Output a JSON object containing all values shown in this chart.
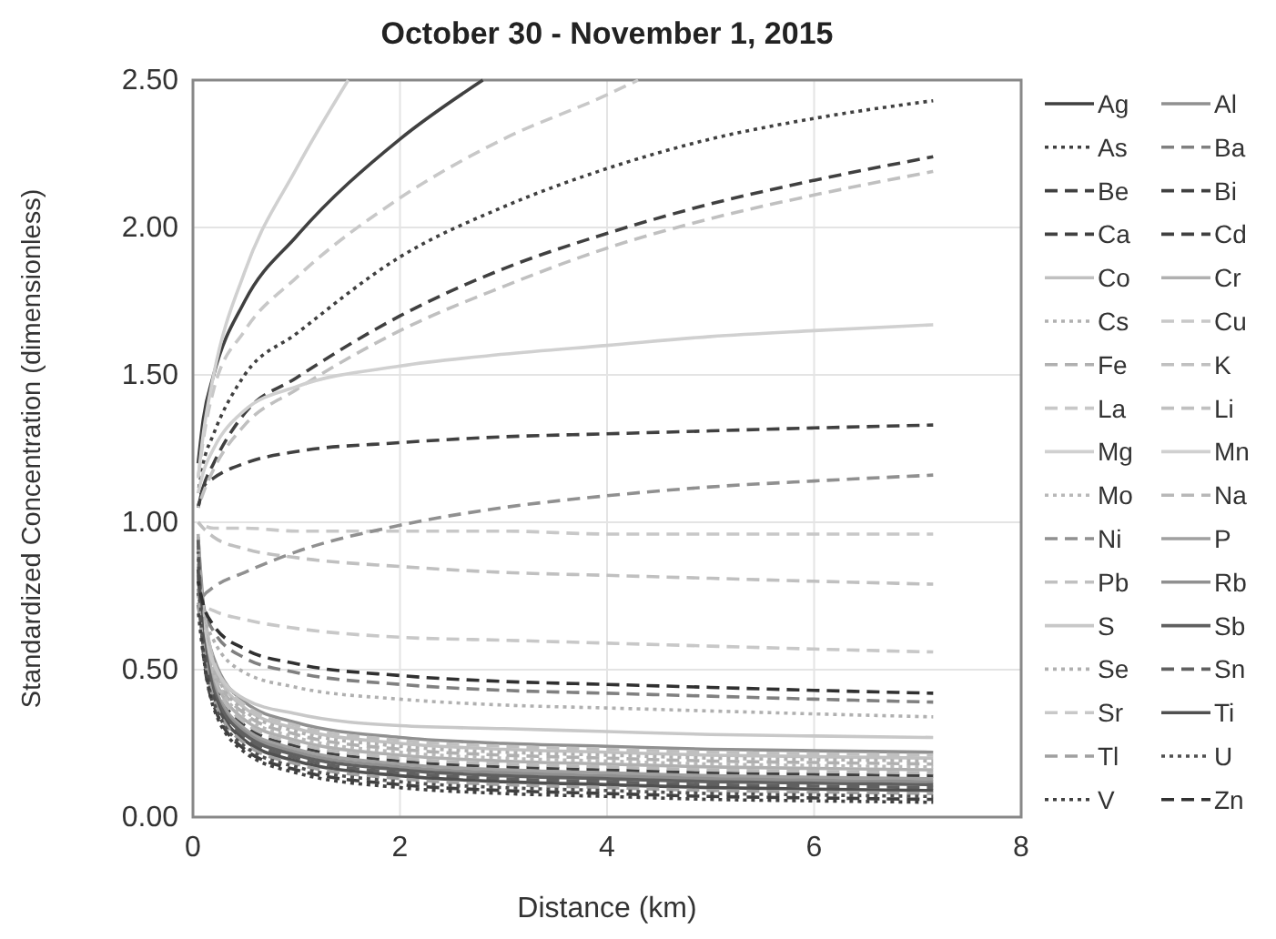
{
  "chart_data": {
    "type": "line",
    "title": "October 30 - November 1, 2015",
    "xlabel": "Distance (km)",
    "ylabel": "Standardized Concentration (dimensionless)",
    "xlim": [
      0,
      8
    ],
    "ylim": [
      0,
      2.5
    ],
    "xticks": [
      0,
      2,
      4,
      6,
      8
    ],
    "yticks": [
      {
        "value": 0,
        "label": "0.00"
      },
      {
        "value": 0.5,
        "label": "0.50"
      },
      {
        "value": 1,
        "label": "1.00"
      },
      {
        "value": 1.5,
        "label": "1.50"
      },
      {
        "value": 2,
        "label": "2.00"
      },
      {
        "value": 2.5,
        "label": "2.50"
      }
    ],
    "grid": true,
    "legend": "right",
    "marker": "none",
    "x": [
      0.05,
      0.1,
      0.2,
      0.5,
      1,
      2,
      3,
      4,
      5,
      6,
      7.15
    ],
    "series": [
      {
        "name": "Ag",
        "color": "#404040",
        "line_style": "solid",
        "x": [
          0.05,
          0.1,
          0.2,
          0.5,
          1,
          2,
          2.8
        ],
        "values": [
          1.2,
          1.35,
          1.5,
          1.75,
          1.97,
          2.3,
          2.5
        ]
      },
      {
        "name": "Al",
        "color": "#909090",
        "line_style": "solid",
        "values": [
          0.95,
          0.72,
          0.54,
          0.39,
          0.32,
          0.27,
          0.25,
          0.24,
          0.23,
          0.225,
          0.22
        ]
      },
      {
        "name": "As",
        "color": "#404040",
        "line_style": "dotted",
        "values": [
          1.1,
          1.2,
          1.3,
          1.5,
          1.64,
          1.9,
          2.07,
          2.2,
          2.3,
          2.37,
          2.43
        ]
      },
      {
        "name": "Ba",
        "color": "#808080",
        "line_style": "dashed",
        "values": [
          0.85,
          0.72,
          0.63,
          0.54,
          0.49,
          0.45,
          0.43,
          0.42,
          0.41,
          0.4,
          0.39
        ]
      },
      {
        "name": "Be",
        "color": "#404040",
        "line_style": "dashed",
        "values": [
          0.8,
          0.56,
          0.38,
          0.23,
          0.16,
          0.11,
          0.09,
          0.08,
          0.07,
          0.065,
          0.06
        ]
      },
      {
        "name": "Bi",
        "color": "#404040",
        "line_style": "dashed",
        "values": [
          1.05,
          1.12,
          1.2,
          1.37,
          1.49,
          1.7,
          1.86,
          1.98,
          2.08,
          2.16,
          2.24
        ]
      },
      {
        "name": "Ca",
        "color": "#404040",
        "line_style": "dashed",
        "values": [
          0.76,
          0.64,
          0.46,
          0.31,
          0.24,
          0.19,
          0.17,
          0.16,
          0.15,
          0.145,
          0.14
        ]
      },
      {
        "name": "Cd",
        "color": "#404040",
        "line_style": "dashed",
        "values": [
          1.05,
          1.12,
          1.15,
          1.2,
          1.24,
          1.27,
          1.29,
          1.3,
          1.31,
          1.32,
          1.33
        ]
      },
      {
        "name": "Co",
        "color": "#c0c0c0",
        "line_style": "solid",
        "values": [
          0.75,
          0.7,
          0.52,
          0.37,
          0.3,
          0.25,
          0.23,
          0.22,
          0.21,
          0.205,
          0.2
        ]
      },
      {
        "name": "Cr",
        "color": "#b0b0b0",
        "line_style": "solid",
        "values": [
          0.96,
          0.66,
          0.48,
          0.33,
          0.26,
          0.21,
          0.19,
          0.18,
          0.17,
          0.165,
          0.16
        ]
      },
      {
        "name": "Cs",
        "color": "#b0b0b0",
        "line_style": "dotted",
        "values": [
          0.91,
          0.69,
          0.51,
          0.36,
          0.29,
          0.24,
          0.22,
          0.21,
          0.2,
          0.195,
          0.19
        ]
      },
      {
        "name": "Cu",
        "color": "#c8c8c8",
        "line_style": "dashed",
        "x": [
          0.05,
          0.1,
          0.2,
          0.5,
          1,
          2,
          3,
          4,
          4.3
        ],
        "values": [
          1.15,
          1.28,
          1.45,
          1.65,
          1.83,
          2.1,
          2.3,
          2.45,
          2.5
        ]
      },
      {
        "name": "Fe",
        "color": "#b0b0b0",
        "line_style": "dashed",
        "values": [
          0.81,
          0.68,
          0.5,
          0.35,
          0.28,
          0.23,
          0.21,
          0.2,
          0.19,
          0.185,
          0.18
        ]
      },
      {
        "name": "K",
        "color": "#c0c0c0",
        "line_style": "dashed",
        "values": [
          0.85,
          0.71,
          0.53,
          0.38,
          0.31,
          0.26,
          0.24,
          0.23,
          0.22,
          0.215,
          0.21
        ]
      },
      {
        "name": "La",
        "color": "#c8c8c8",
        "line_style": "dashed",
        "values": [
          1.0,
          0.99,
          0.98,
          0.98,
          0.97,
          0.97,
          0.97,
          0.96,
          0.96,
          0.96,
          0.96
        ]
      },
      {
        "name": "Li",
        "color": "#c0c0c0",
        "line_style": "dashed",
        "values": [
          1.05,
          1.1,
          1.18,
          1.33,
          1.45,
          1.65,
          1.8,
          1.93,
          2.03,
          2.11,
          2.19
        ]
      },
      {
        "name": "Mg",
        "color": "#d0d0d0",
        "line_style": "solid",
        "values": [
          1.1,
          1.17,
          1.25,
          1.38,
          1.46,
          1.53,
          1.57,
          1.6,
          1.63,
          1.65,
          1.67
        ]
      },
      {
        "name": "Mn",
        "color": "#d0d0d0",
        "line_style": "solid",
        "x": [
          0.05,
          0.1,
          0.2,
          0.5,
          1,
          1.5
        ],
        "values": [
          1.15,
          1.3,
          1.5,
          1.85,
          2.2,
          2.5
        ]
      },
      {
        "name": "Mo",
        "color": "#b8b8b8",
        "line_style": "dotted",
        "values": [
          0.71,
          0.67,
          0.49,
          0.34,
          0.27,
          0.22,
          0.2,
          0.19,
          0.18,
          0.175,
          0.17
        ]
      },
      {
        "name": "Na",
        "color": "#b8b8b8",
        "line_style": "dashed",
        "values": [
          0.86,
          0.65,
          0.47,
          0.32,
          0.25,
          0.2,
          0.18,
          0.17,
          0.16,
          0.155,
          0.15
        ]
      },
      {
        "name": "Ni",
        "color": "#909090",
        "line_style": "dashed",
        "values": [
          0.72,
          0.75,
          0.78,
          0.83,
          0.9,
          0.99,
          1.05,
          1.09,
          1.12,
          1.14,
          1.16
        ]
      },
      {
        "name": "P",
        "color": "#a0a0a0",
        "line_style": "solid",
        "values": [
          0.92,
          0.63,
          0.45,
          0.3,
          0.23,
          0.18,
          0.16,
          0.15,
          0.14,
          0.135,
          0.13
        ]
      },
      {
        "name": "Pb",
        "color": "#c0c0c0",
        "line_style": "dashed",
        "values": [
          1.0,
          0.98,
          0.95,
          0.91,
          0.88,
          0.85,
          0.83,
          0.82,
          0.81,
          0.8,
          0.79
        ]
      },
      {
        "name": "Rb",
        "color": "#909090",
        "line_style": "solid",
        "values": [
          0.82,
          0.62,
          0.44,
          0.29,
          0.22,
          0.17,
          0.15,
          0.14,
          0.13,
          0.125,
          0.12
        ]
      },
      {
        "name": "S",
        "color": "#c8c8c8",
        "line_style": "solid",
        "values": [
          0.8,
          0.65,
          0.52,
          0.4,
          0.35,
          0.31,
          0.3,
          0.29,
          0.28,
          0.275,
          0.27
        ]
      },
      {
        "name": "Sb",
        "color": "#606060",
        "line_style": "solid",
        "values": [
          0.72,
          0.61,
          0.43,
          0.28,
          0.21,
          0.16,
          0.14,
          0.13,
          0.12,
          0.115,
          0.11
        ]
      },
      {
        "name": "Se",
        "color": "#b0b0b0",
        "line_style": "dotted",
        "values": [
          0.82,
          0.7,
          0.6,
          0.49,
          0.44,
          0.4,
          0.38,
          0.37,
          0.36,
          0.35,
          0.34
        ]
      },
      {
        "name": "Sn",
        "color": "#606060",
        "line_style": "dashed",
        "values": [
          0.94,
          0.6,
          0.42,
          0.27,
          0.2,
          0.15,
          0.13,
          0.12,
          0.11,
          0.105,
          0.1
        ]
      },
      {
        "name": "Sr",
        "color": "#c8c8c8",
        "line_style": "dashed",
        "values": [
          0.75,
          0.72,
          0.7,
          0.67,
          0.64,
          0.61,
          0.6,
          0.59,
          0.58,
          0.57,
          0.56
        ]
      },
      {
        "name": "Ti",
        "color": "#505050",
        "line_style": "solid",
        "values": [
          0.84,
          0.59,
          0.41,
          0.26,
          0.19,
          0.14,
          0.12,
          0.11,
          0.1,
          0.095,
          0.09
        ]
      },
      {
        "name": "Tl",
        "color": "#a0a0a0",
        "line_style": "dashed",
        "values": [
          0.74,
          0.58,
          0.4,
          0.25,
          0.18,
          0.13,
          0.11,
          0.1,
          0.09,
          0.085,
          0.08
        ]
      },
      {
        "name": "U",
        "color": "#505050",
        "line_style": "dotted",
        "values": [
          0.9,
          0.57,
          0.39,
          0.24,
          0.17,
          0.12,
          0.1,
          0.09,
          0.08,
          0.075,
          0.07
        ]
      },
      {
        "name": "V",
        "color": "#404040",
        "line_style": "dotted",
        "values": [
          0.7,
          0.55,
          0.37,
          0.22,
          0.15,
          0.1,
          0.08,
          0.07,
          0.06,
          0.055,
          0.05
        ]
      },
      {
        "name": "Zn",
        "color": "#303030",
        "line_style": "dashed",
        "values": [
          0.8,
          0.72,
          0.65,
          0.57,
          0.52,
          0.48,
          0.46,
          0.45,
          0.44,
          0.43,
          0.42
        ]
      }
    ]
  }
}
